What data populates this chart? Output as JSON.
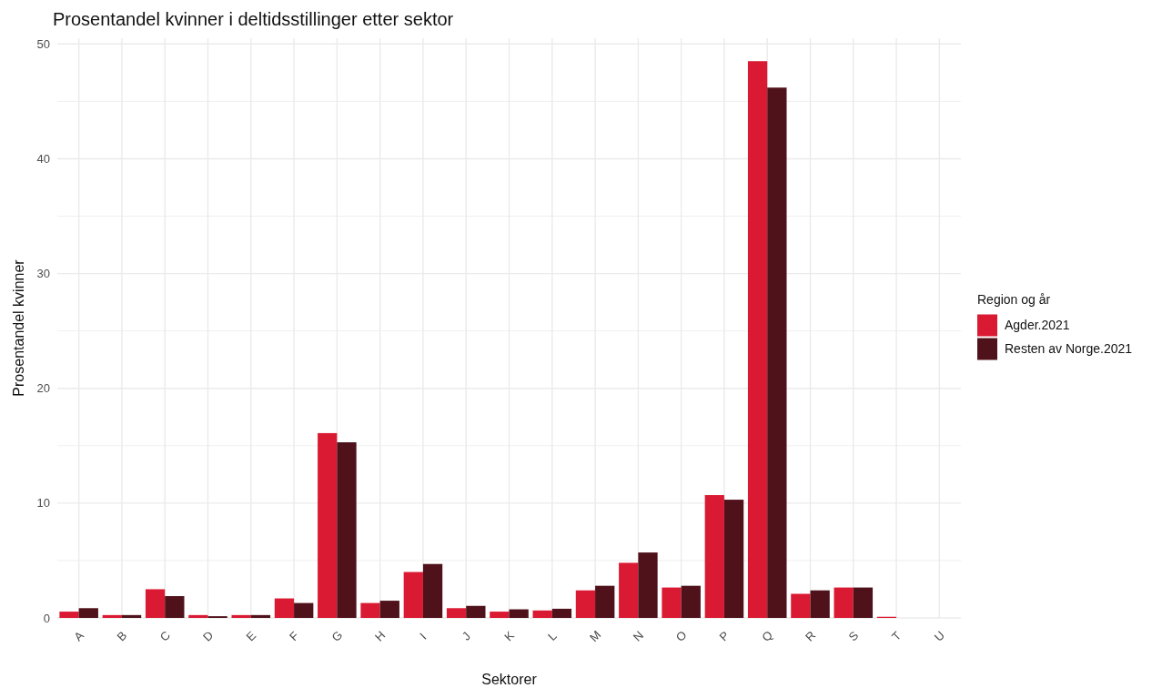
{
  "chart_data": {
    "type": "bar",
    "title": "Prosentandel kvinner i deltidsstillinger etter sektor",
    "xlabel": "Sektorer",
    "ylabel": "Prosentandel kvinner",
    "legend_title": "Region og år",
    "categories": [
      "A",
      "B",
      "C",
      "D",
      "E",
      "F",
      "G",
      "H",
      "I",
      "J",
      "K",
      "L",
      "M",
      "N",
      "O",
      "P",
      "Q",
      "R",
      "S",
      "T",
      "U"
    ],
    "series": [
      {
        "name": "Agder.2021",
        "color": "#da1a32",
        "values": [
          0.55,
          0.25,
          2.5,
          0.25,
          0.25,
          1.7,
          16.1,
          1.3,
          4.0,
          0.85,
          0.55,
          0.65,
          2.4,
          4.8,
          2.65,
          10.7,
          48.5,
          2.1,
          2.65,
          0.1,
          0
        ]
      },
      {
        "name": "Resten av Norge.2021",
        "color": "#4f121b",
        "values": [
          0.85,
          0.25,
          1.9,
          0.15,
          0.25,
          1.3,
          15.3,
          1.5,
          4.7,
          1.05,
          0.75,
          0.8,
          2.8,
          5.7,
          2.8,
          10.3,
          46.2,
          2.4,
          2.65,
          0,
          0
        ]
      }
    ],
    "ylim": [
      0,
      50.5
    ],
    "yticks": [
      0,
      {
        "value": 5,
        "label": null
      },
      10,
      {
        "value": 15,
        "label": null
      },
      20,
      {
        "value": 25,
        "label": null
      },
      30,
      {
        "value": 35,
        "label": null
      },
      40,
      {
        "value": 45,
        "label": null
      },
      50
    ],
    "grid": true,
    "legend": "right"
  }
}
